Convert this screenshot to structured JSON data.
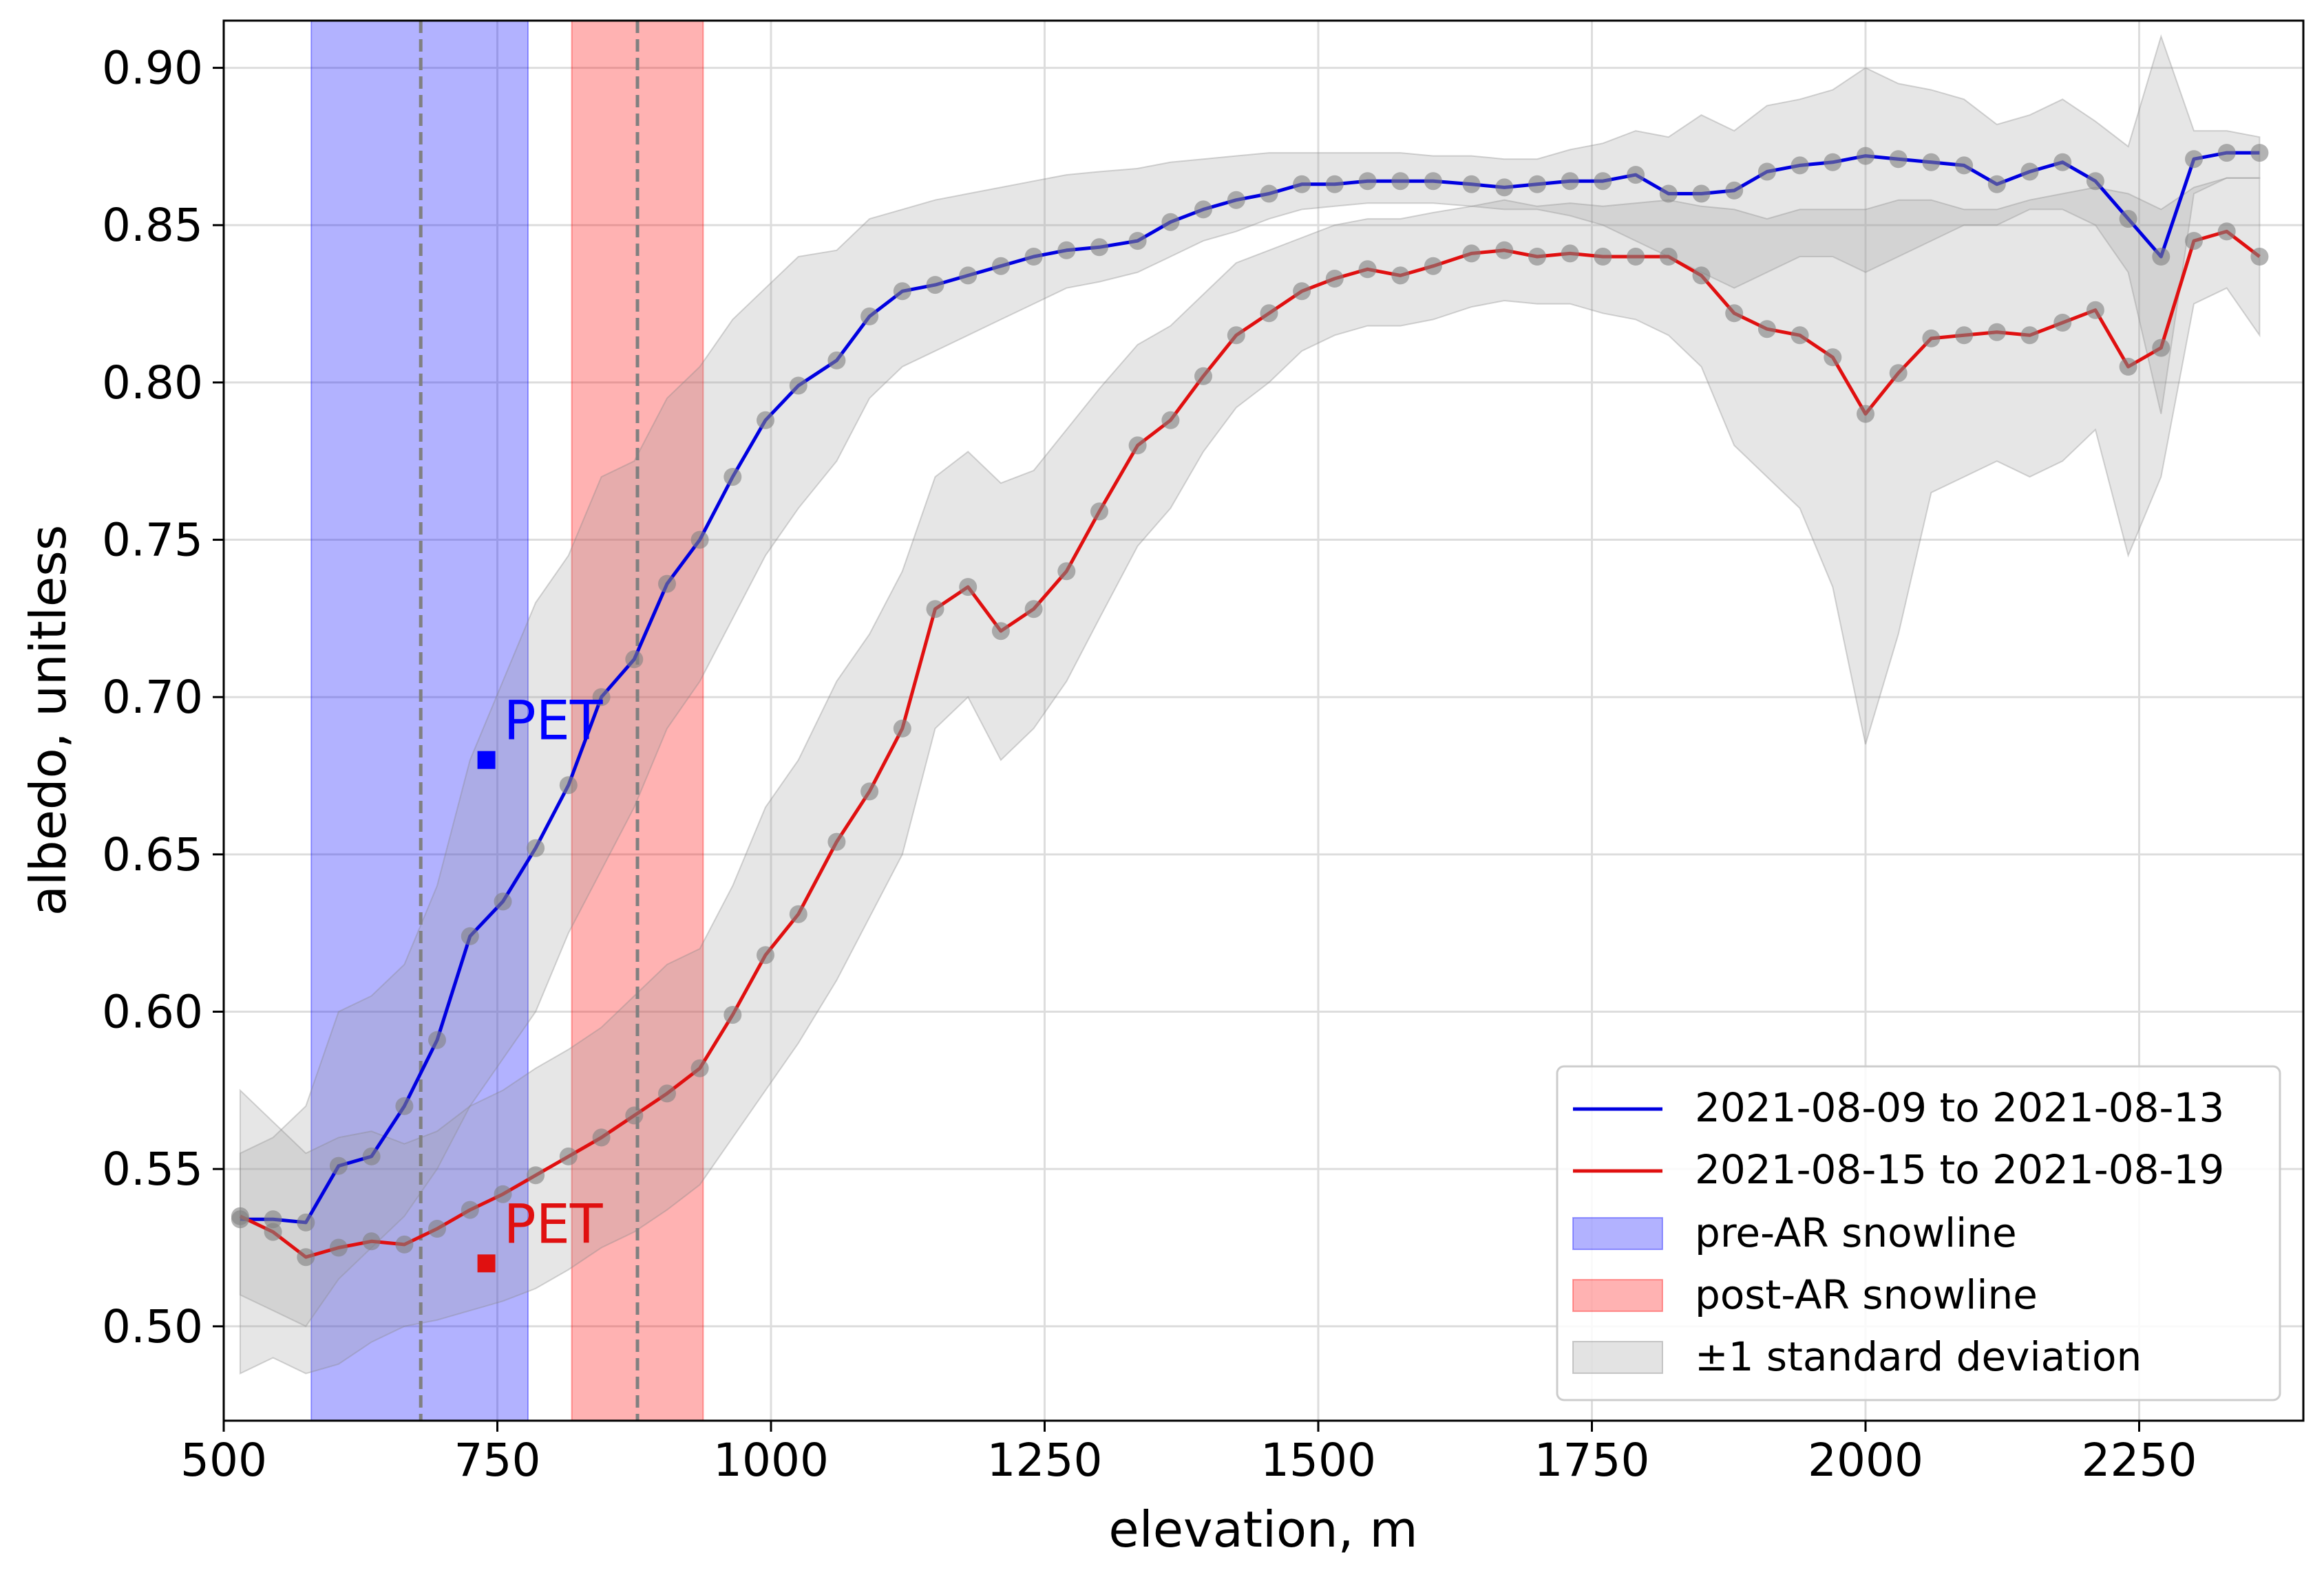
{
  "chart_data": {
    "type": "line",
    "xlabel": "elevation, m",
    "ylabel": "albedo, unitless",
    "xlim": [
      500,
      2400
    ],
    "ylim": [
      0.47,
      0.915
    ],
    "xticks": [
      500,
      750,
      1000,
      1250,
      1500,
      1750,
      2000,
      2250
    ],
    "xtick_labels": [
      "500",
      "750",
      "1000",
      "1250",
      "1500",
      "1750",
      "2000",
      "2250"
    ],
    "yticks": [
      0.5,
      0.55,
      0.6,
      0.65,
      0.7,
      0.75,
      0.8,
      0.85,
      0.9
    ],
    "ytick_labels": [
      "0.50",
      "0.55",
      "0.60",
      "0.65",
      "0.70",
      "0.75",
      "0.80",
      "0.85",
      "0.90"
    ],
    "grid": true,
    "legend_position": "lower-right",
    "x": [
      515,
      545,
      575,
      605,
      635,
      665,
      695,
      725,
      755,
      785,
      815,
      845,
      875,
      905,
      935,
      965,
      995,
      1025,
      1060,
      1090,
      1120,
      1150,
      1180,
      1210,
      1240,
      1270,
      1300,
      1335,
      1365,
      1395,
      1425,
      1455,
      1485,
      1515,
      1545,
      1575,
      1605,
      1640,
      1670,
      1700,
      1730,
      1760,
      1790,
      1820,
      1850,
      1880,
      1910,
      1940,
      1970,
      2000,
      2030,
      2060,
      2090,
      2120,
      2150,
      2180,
      2210,
      2240,
      2270,
      2300,
      2330,
      2360
    ],
    "series": [
      {
        "name": "2021-08-09 to 2021-08-13",
        "color": "#0000e0",
        "values": [
          0.534,
          0.534,
          0.533,
          0.551,
          0.554,
          0.57,
          0.591,
          0.624,
          0.635,
          0.652,
          0.672,
          0.7,
          0.712,
          0.736,
          0.75,
          0.77,
          0.788,
          0.799,
          0.807,
          0.821,
          0.829,
          0.831,
          0.834,
          0.837,
          0.84,
          0.842,
          0.843,
          0.845,
          0.851,
          0.855,
          0.858,
          0.86,
          0.863,
          0.863,
          0.864,
          0.864,
          0.864,
          0.863,
          0.862,
          0.863,
          0.864,
          0.864,
          0.866,
          0.86,
          0.86,
          0.861,
          0.867,
          0.869,
          0.87,
          0.872,
          0.871,
          0.87,
          0.869,
          0.863,
          0.867,
          0.87,
          0.864,
          0.852,
          0.84,
          0.871,
          0.873,
          0.873
        ],
        "std_lower": [
          0.51,
          0.505,
          0.5,
          0.515,
          0.525,
          0.535,
          0.55,
          0.57,
          0.585,
          0.6,
          0.625,
          0.645,
          0.665,
          0.69,
          0.705,
          0.725,
          0.745,
          0.76,
          0.775,
          0.795,
          0.805,
          0.81,
          0.815,
          0.82,
          0.825,
          0.83,
          0.832,
          0.835,
          0.84,
          0.845,
          0.848,
          0.852,
          0.855,
          0.856,
          0.857,
          0.857,
          0.857,
          0.856,
          0.855,
          0.855,
          0.853,
          0.85,
          0.845,
          0.84,
          0.835,
          0.83,
          0.835,
          0.84,
          0.84,
          0.835,
          0.84,
          0.845,
          0.85,
          0.85,
          0.855,
          0.855,
          0.85,
          0.835,
          0.79,
          0.86,
          0.865,
          0.865
        ],
        "std_upper": [
          0.555,
          0.56,
          0.57,
          0.6,
          0.605,
          0.615,
          0.64,
          0.68,
          0.705,
          0.73,
          0.745,
          0.77,
          0.775,
          0.795,
          0.805,
          0.82,
          0.83,
          0.84,
          0.842,
          0.852,
          0.855,
          0.858,
          0.86,
          0.862,
          0.864,
          0.866,
          0.867,
          0.868,
          0.87,
          0.871,
          0.872,
          0.873,
          0.873,
          0.873,
          0.873,
          0.873,
          0.872,
          0.872,
          0.871,
          0.871,
          0.874,
          0.876,
          0.88,
          0.878,
          0.885,
          0.88,
          0.888,
          0.89,
          0.893,
          0.9,
          0.895,
          0.893,
          0.89,
          0.882,
          0.885,
          0.89,
          0.883,
          0.875,
          0.91,
          0.88,
          0.88,
          0.878
        ]
      },
      {
        "name": "2021-08-15 to 2021-08-19",
        "color": "#e01010",
        "values": [
          0.535,
          0.53,
          0.522,
          0.525,
          0.527,
          0.526,
          0.531,
          0.537,
          0.542,
          0.548,
          0.554,
          0.56,
          0.567,
          0.574,
          0.582,
          0.599,
          0.618,
          0.631,
          0.654,
          0.67,
          0.69,
          0.728,
          0.735,
          0.721,
          0.728,
          0.74,
          0.759,
          0.78,
          0.788,
          0.802,
          0.815,
          0.822,
          0.829,
          0.833,
          0.836,
          0.834,
          0.837,
          0.841,
          0.842,
          0.84,
          0.841,
          0.84,
          0.84,
          0.84,
          0.834,
          0.822,
          0.817,
          0.815,
          0.808,
          0.79,
          0.803,
          0.814,
          0.815,
          0.816,
          0.815,
          0.819,
          0.823,
          0.805,
          0.811,
          0.845,
          0.848,
          0.84
        ],
        "std_lower": [
          0.485,
          0.49,
          0.485,
          0.488,
          0.495,
          0.5,
          0.502,
          0.505,
          0.508,
          0.512,
          0.518,
          0.525,
          0.53,
          0.537,
          0.545,
          0.56,
          0.575,
          0.59,
          0.61,
          0.63,
          0.65,
          0.69,
          0.7,
          0.68,
          0.69,
          0.705,
          0.725,
          0.748,
          0.76,
          0.778,
          0.792,
          0.8,
          0.81,
          0.815,
          0.818,
          0.818,
          0.82,
          0.824,
          0.826,
          0.825,
          0.825,
          0.822,
          0.82,
          0.815,
          0.805,
          0.78,
          0.77,
          0.76,
          0.735,
          0.685,
          0.72,
          0.765,
          0.77,
          0.775,
          0.77,
          0.775,
          0.785,
          0.745,
          0.77,
          0.825,
          0.83,
          0.815
        ],
        "std_upper": [
          0.575,
          0.565,
          0.555,
          0.56,
          0.562,
          0.558,
          0.562,
          0.57,
          0.575,
          0.582,
          0.588,
          0.595,
          0.605,
          0.615,
          0.62,
          0.64,
          0.665,
          0.68,
          0.705,
          0.72,
          0.74,
          0.77,
          0.778,
          0.768,
          0.772,
          0.785,
          0.798,
          0.812,
          0.818,
          0.828,
          0.838,
          0.842,
          0.846,
          0.85,
          0.852,
          0.852,
          0.854,
          0.856,
          0.858,
          0.856,
          0.857,
          0.856,
          0.857,
          0.858,
          0.856,
          0.855,
          0.852,
          0.855,
          0.855,
          0.855,
          0.858,
          0.858,
          0.855,
          0.855,
          0.858,
          0.86,
          0.862,
          0.86,
          0.855,
          0.862,
          0.865,
          0.865
        ]
      }
    ],
    "std_band_label": "±1 standard deviation",
    "snowlines": [
      {
        "name": "pre-AR snowline",
        "x_range": [
          580,
          778
        ],
        "dashed_line_x": 680,
        "color": "#0000ff",
        "fill_opacity": 0.3
      },
      {
        "name": "post-AR snowline",
        "x_range": [
          818,
          938
        ],
        "dashed_line_x": 878,
        "color": "#ff0000",
        "fill_opacity": 0.3
      }
    ],
    "annotations": [
      {
        "text": "PET",
        "x": 740,
        "y": 0.68,
        "color": "#0000ff"
      },
      {
        "text": "PET",
        "x": 740,
        "y": 0.52,
        "color": "#e01010"
      }
    ]
  }
}
